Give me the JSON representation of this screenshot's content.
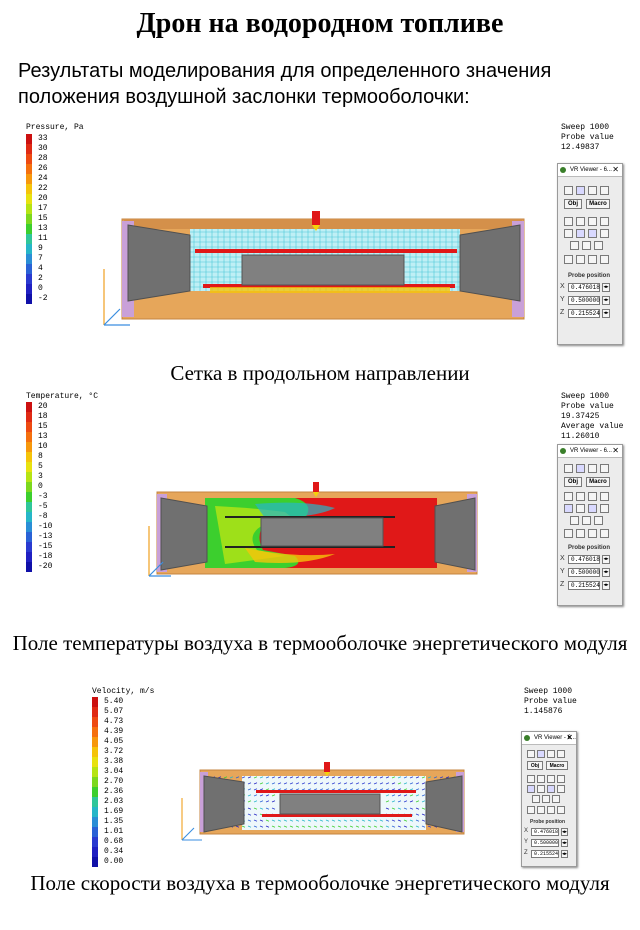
{
  "title": "Дрон на водородном топливе",
  "intro": "Результаты моделирования для определенного значения положения воздушной заслонки термооболочки:",
  "vr_viewer": {
    "window_title": "VR Viewer - 6...",
    "obj_label": "Obj",
    "macro_label": "Macro",
    "probe_position_label": "Probe position",
    "x_label": "X",
    "y_label": "Y",
    "z_label": "Z",
    "x_value": "0.476018",
    "y_value": "0.500000",
    "z_value": "0.215524"
  },
  "panels": [
    {
      "legend_title": "Pressure, Pa",
      "ticks": [
        "33",
        "30",
        "28",
        "26",
        "24",
        "22",
        "20",
        "17",
        "15",
        "13",
        "11",
        "9",
        "7",
        "4",
        "2",
        "0",
        "-2"
      ],
      "probe": [
        "Sweep 1000",
        "Probe value",
        "12.49837"
      ],
      "caption": "Сетка в продольном направлении"
    },
    {
      "legend_title": "Temperature, °C",
      "ticks": [
        "20",
        "18",
        "15",
        "13",
        "10",
        "8",
        "5",
        "3",
        "0",
        "-3",
        "-5",
        "-8",
        "-10",
        "-13",
        "-15",
        "-18",
        "-20"
      ],
      "probe": [
        "Sweep 1000",
        "Probe value",
        "19.37425",
        "Average value",
        "11.26010"
      ],
      "caption": "Поле температуры воздуха в термооболочке энергетического модуля"
    },
    {
      "legend_title": "Velocity, m/s",
      "ticks": [
        "5.40",
        "5.07",
        "4.73",
        "4.39",
        "4.05",
        "3.72",
        "3.38",
        "3.04",
        "2.70",
        "2.36",
        "2.03",
        "1.69",
        "1.35",
        "1.01",
        "0.68",
        "0.34",
        "0.00"
      ],
      "probe": [
        "Sweep 1000",
        "Probe value",
        "1.145876"
      ],
      "caption": "Поле скорости воздуха в термооболочке энергетического модуля"
    }
  ],
  "colors": {
    "scale": [
      "#cc1010",
      "#e02a14",
      "#ee4a12",
      "#f5700e",
      "#f7980c",
      "#f5c40a",
      "#e8e210",
      "#b6e414",
      "#7cd81e",
      "#3ccf2e",
      "#2fc69a",
      "#26b6c8",
      "#2a8ed6",
      "#2a62d6",
      "#2a3ad0",
      "#2020c2",
      "#1010a8"
    ],
    "shell": "#e6a65a",
    "gray": "#707070",
    "red": "#e01818",
    "mesh": "#4cc8d8",
    "magenta": "#c9a0d8"
  }
}
